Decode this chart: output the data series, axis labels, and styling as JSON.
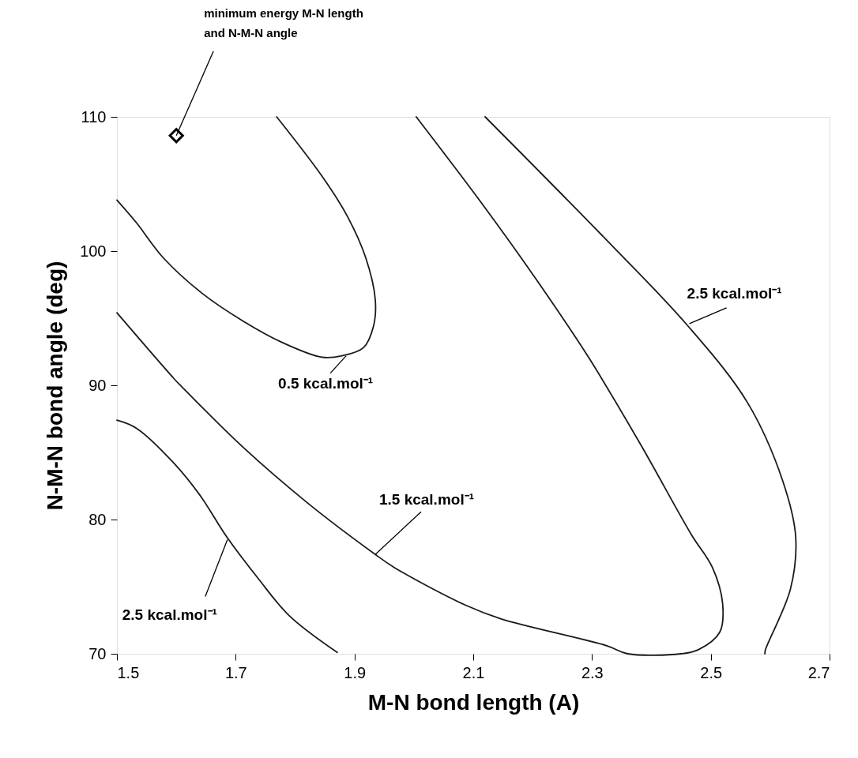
{
  "chart_data": {
    "type": "line",
    "xlabel": "M-N bond length (A)",
    "ylabel": "N-M-N bond angle (deg)",
    "xlim": [
      1.5,
      2.7
    ],
    "xticks": [
      1.5,
      1.7,
      1.9,
      2.1,
      2.3,
      2.5,
      2.7
    ],
    "ylim": [
      70,
      110
    ],
    "yticks": [
      70,
      80,
      90,
      100,
      110
    ],
    "marker": "none",
    "line_style": "solid",
    "series": [
      {
        "color": "#1a1a1a",
        "x": [
          1.769,
          1.845,
          1.888,
          1.919,
          1.935,
          1.932,
          1.915,
          1.879,
          1.845,
          1.778,
          1.712,
          1.645,
          1.578,
          1.533,
          1.5
        ],
        "values": [
          110,
          105.6,
          102.6,
          99.5,
          96.4,
          94.4,
          92.8,
          92.2,
          92.1,
          93.2,
          94.8,
          96.8,
          99.5,
          102.1,
          103.8
        ]
      },
      {
        "color": "#1a1a1a",
        "x": [
          1.5,
          1.596,
          1.609,
          1.712,
          1.822,
          1.932,
          1.968,
          2.088,
          2.147,
          2.325,
          2.36,
          2.45,
          2.479,
          2.515,
          2.52,
          2.503,
          2.467,
          2.383,
          2.294,
          2.206,
          2.117,
          2.004
        ],
        "values": [
          95.4,
          90.5,
          89.9,
          85.4,
          81.2,
          77.5,
          76.4,
          73.6,
          72.6,
          70.6,
          70.0,
          70.0,
          70.3,
          71.6,
          73.7,
          76.4,
          78.9,
          85.5,
          92.1,
          97.9,
          103.4,
          110
        ]
      },
      {
        "color": "#1a1a1a",
        "x": [
          2.12,
          2.325,
          2.46,
          2.562,
          2.621,
          2.643,
          2.634,
          2.592,
          2.591
        ],
        "values": [
          110,
          100.8,
          94.5,
          88.7,
          82.9,
          78.7,
          74.8,
          70.3,
          70
        ]
      },
      {
        "color": "#1a1a1a",
        "x": [
          1.5,
          1.533,
          1.596,
          1.64,
          1.685,
          1.738,
          1.791,
          1.871
        ],
        "values": [
          87.4,
          86.8,
          84.2,
          81.8,
          78.7,
          75.6,
          72.8,
          70.1
        ]
      },
      {
        "type": "scatter",
        "marker": "diamond",
        "color": "#000000",
        "x": [
          1.6
        ],
        "values": [
          108.6
        ]
      }
    ],
    "annotations": [
      {
        "text": "minimum energy M-N length\nand N-M-N angle",
        "x": 1.6,
        "y": 108.6
      },
      {
        "text": "0.5 kcal.mol⁻¹",
        "x": 1.886,
        "y": 92.2
      },
      {
        "text": "1.5 kcal.mol⁻¹",
        "x": 1.935,
        "y": 77.4
      },
      {
        "text": "2.5 kcal.mol⁻¹",
        "x": 2.464,
        "y": 94.6
      },
      {
        "text": "2.5 kcal.mol⁻¹",
        "x": 1.686,
        "y": 78.5
      }
    ]
  }
}
